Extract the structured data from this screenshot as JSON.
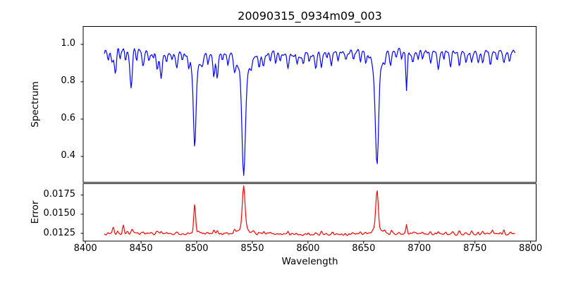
{
  "figure": {
    "title": "20090315_0934m09_003"
  },
  "chart_data": {
    "type": "line",
    "title": "20090315_0934m09_003",
    "xlabel": "Wavelength",
    "grid": false,
    "legend": null,
    "xlim": [
      8398,
      8805
    ],
    "xticks": [
      8400,
      8450,
      8500,
      8550,
      8600,
      8650,
      8700,
      8750,
      8800
    ],
    "xticklabels": [
      "8400",
      "8450",
      "8500",
      "8550",
      "8600",
      "8650",
      "8700",
      "8750",
      "8800"
    ],
    "x_data_range": [
      8417,
      8786
    ],
    "panels": [
      {
        "id": "spectrum",
        "ylabel": "Spectrum",
        "color": "#0000ff",
        "ylim": [
          0.262,
          1.096
        ],
        "yticks": [
          0.4,
          0.6,
          0.8,
          1.0
        ],
        "yticklabels": [
          "0.4",
          "0.6",
          "0.8",
          "1.0"
        ],
        "continuum": 0.955,
        "noise_amp": 0.03,
        "sample_step": 0.75,
        "seed": 7,
        "feature_sign": -1,
        "waves": [
          [
            300,
            0.01,
            1.8
          ],
          [
            120,
            0.007,
            0.4
          ],
          [
            47,
            0.005,
            2.9
          ]
        ],
        "main_features": [
          {
            "x": 8498,
            "y_min": 0.46
          },
          {
            "x": 8542,
            "y_min": 0.3
          },
          {
            "x": 8662,
            "y_min": 0.32
          },
          {
            "x": 8688.5,
            "y_min": 0.72
          },
          {
            "x": 8441,
            "y_min": 0.75
          }
        ],
        "features": [
          [
            8420.5,
            0.05,
            0.7
          ],
          [
            8424,
            0.07,
            0.8
          ],
          [
            8427,
            0.13,
            0.9
          ],
          [
            8431,
            0.04,
            0.6
          ],
          [
            8436,
            0.05,
            0.7
          ],
          [
            8441,
            0.21,
            1.1
          ],
          [
            8446,
            0.05,
            0.7
          ],
          [
            8452,
            0.07,
            0.8
          ],
          [
            8457,
            0.05,
            0.7
          ],
          [
            8461,
            0.04,
            0.6
          ],
          [
            8464.5,
            0.09,
            0.8
          ],
          [
            8468,
            0.11,
            0.9
          ],
          [
            8473,
            0.05,
            0.7
          ],
          [
            8478,
            0.04,
            0.6
          ],
          [
            8482,
            0.08,
            0.9
          ],
          [
            8487,
            0.04,
            0.6
          ],
          [
            8493,
            0.05,
            0.6
          ],
          [
            8498.2,
            0.4,
            1.1
          ],
          [
            8498.2,
            0.1,
            3.5
          ],
          [
            8505,
            0.06,
            0.8
          ],
          [
            8510,
            0.04,
            0.6
          ],
          [
            8515.5,
            0.12,
            0.8
          ],
          [
            8518.5,
            0.13,
            0.8
          ],
          [
            8523,
            0.04,
            0.6
          ],
          [
            8528,
            0.06,
            0.7
          ],
          [
            8534,
            0.08,
            0.8
          ],
          [
            8542.2,
            0.53,
            1.5
          ],
          [
            8542.2,
            0.12,
            5.0
          ],
          [
            8549,
            0.04,
            0.8
          ],
          [
            8556,
            0.07,
            0.8
          ],
          [
            8560,
            0.07,
            0.8
          ],
          [
            8566,
            0.05,
            0.7
          ],
          [
            8571,
            0.05,
            0.7
          ],
          [
            8575,
            0.04,
            0.6
          ],
          [
            8582,
            0.08,
            0.9
          ],
          [
            8590,
            0.05,
            0.7
          ],
          [
            8596,
            0.05,
            0.7
          ],
          [
            8601,
            0.04,
            0.6
          ],
          [
            8607,
            0.06,
            0.8
          ],
          [
            8612,
            0.09,
            0.8
          ],
          [
            8617,
            0.04,
            0.6
          ],
          [
            8621,
            0.08,
            0.8
          ],
          [
            8627,
            0.05,
            0.7
          ],
          [
            8634,
            0.05,
            0.7
          ],
          [
            8641,
            0.04,
            0.6
          ],
          [
            8647,
            0.05,
            0.7
          ],
          [
            8652,
            0.06,
            0.8
          ],
          [
            8662.0,
            0.52,
            1.4
          ],
          [
            8662.0,
            0.11,
            4.5
          ],
          [
            8669,
            0.05,
            0.8
          ],
          [
            8674,
            0.09,
            0.9
          ],
          [
            8679,
            0.05,
            0.7
          ],
          [
            8684,
            0.04,
            0.6
          ],
          [
            8688.5,
            0.22,
            0.7
          ],
          [
            8694,
            0.05,
            0.7
          ],
          [
            8699,
            0.04,
            0.6
          ],
          [
            8703,
            0.05,
            0.7
          ],
          [
            8710,
            0.06,
            0.8
          ],
          [
            8717,
            0.09,
            0.9
          ],
          [
            8722,
            0.04,
            0.6
          ],
          [
            8728,
            0.06,
            0.8
          ],
          [
            8736,
            0.08,
            0.8
          ],
          [
            8742,
            0.05,
            0.7
          ],
          [
            8747,
            0.06,
            0.8
          ],
          [
            8753,
            0.05,
            0.7
          ],
          [
            8757,
            0.06,
            0.7
          ],
          [
            8764,
            0.09,
            0.9
          ],
          [
            8770,
            0.05,
            0.7
          ],
          [
            8776,
            0.06,
            0.8
          ],
          [
            8781,
            0.05,
            0.7
          ]
        ]
      },
      {
        "id": "error",
        "ylabel": "Error",
        "color": "#ff0000",
        "ylim": [
          0.01149,
          0.01899
        ],
        "yticks": [
          0.0125,
          0.015,
          0.0175
        ],
        "yticklabels": [
          "0.0125",
          "0.0150",
          "0.0175"
        ],
        "continuum": 0.01244,
        "noise_amp": 0.00028,
        "sample_step": 0.75,
        "seed": 13,
        "feature_sign": 1,
        "waves": [
          [
            500,
            5e-05,
            2.0
          ],
          [
            130,
            4e-05,
            0.8
          ]
        ],
        "main_features": [
          {
            "x": 8498,
            "y_peak": 0.0163
          },
          {
            "x": 8542,
            "y_peak": 0.0187
          },
          {
            "x": 8662,
            "y_peak": 0.0181
          },
          {
            "x": 8688.5,
            "y_peak": 0.0138
          },
          {
            "x": 8434,
            "y_peak": 0.0136
          }
        ],
        "features": [
          [
            8425,
            0.0009,
            0.7
          ],
          [
            8429,
            0.0003,
            0.6
          ],
          [
            8434,
            0.0012,
            0.7
          ],
          [
            8438,
            0.0003,
            0.6
          ],
          [
            8442,
            0.0005,
            0.7
          ],
          [
            8447,
            0.0002,
            0.6
          ],
          [
            8452,
            0.0003,
            0.7
          ],
          [
            8457,
            0.0002,
            0.6
          ],
          [
            8464,
            0.00045,
            0.8
          ],
          [
            8468,
            0.00035,
            0.7
          ],
          [
            8473,
            0.0002,
            0.6
          ],
          [
            8482,
            0.00025,
            0.7
          ],
          [
            8498.2,
            0.0036,
            0.8
          ],
          [
            8498.2,
            0.0004,
            2.5
          ],
          [
            8504,
            0.00035,
            0.7
          ],
          [
            8510,
            0.0002,
            0.6
          ],
          [
            8515.5,
            0.0006,
            0.7
          ],
          [
            8518.5,
            0.00045,
            0.7
          ],
          [
            8527,
            0.0003,
            0.7
          ],
          [
            8534,
            0.0004,
            0.8
          ],
          [
            8542.2,
            0.0055,
            1.2
          ],
          [
            8542.2,
            0.0008,
            4.0
          ],
          [
            8551,
            0.00035,
            0.8
          ],
          [
            8556,
            0.0002,
            0.6
          ],
          [
            8560,
            0.00025,
            0.7
          ],
          [
            8566,
            0.00025,
            0.7
          ],
          [
            8575,
            0.0002,
            0.6
          ],
          [
            8582,
            0.0003,
            0.7
          ],
          [
            8590,
            0.0002,
            0.6
          ],
          [
            8600,
            0.00025,
            0.7
          ],
          [
            8607,
            0.0002,
            0.6
          ],
          [
            8612,
            0.0004,
            0.7
          ],
          [
            8622,
            0.0004,
            0.7
          ],
          [
            8630,
            0.0002,
            0.6
          ],
          [
            8640,
            0.0002,
            0.6
          ],
          [
            8647,
            0.0003,
            0.7
          ],
          [
            8652,
            0.0002,
            0.6
          ],
          [
            8662.0,
            0.005,
            1.1
          ],
          [
            8662.0,
            0.0007,
            3.5
          ],
          [
            8669,
            0.0003,
            0.7
          ],
          [
            8675,
            0.0004,
            0.7
          ],
          [
            8682,
            0.00025,
            0.7
          ],
          [
            8688.5,
            0.0013,
            0.6
          ],
          [
            8695,
            0.0003,
            0.7
          ],
          [
            8703,
            0.00025,
            0.6
          ],
          [
            8710,
            0.0003,
            0.7
          ],
          [
            8717,
            0.00035,
            0.7
          ],
          [
            8724,
            0.00025,
            0.6
          ],
          [
            8730,
            0.0003,
            0.7
          ],
          [
            8736,
            0.0003,
            0.7
          ],
          [
            8742,
            0.00025,
            0.6
          ],
          [
            8747,
            0.0003,
            0.7
          ],
          [
            8753,
            0.00025,
            0.6
          ],
          [
            8757,
            0.0003,
            0.7
          ],
          [
            8766,
            0.0004,
            0.7
          ],
          [
            8776,
            0.0004,
            0.7
          ],
          [
            8782,
            0.0003,
            0.6
          ]
        ]
      }
    ],
    "frame_color": "#000000",
    "background_color": "#ffffff"
  }
}
